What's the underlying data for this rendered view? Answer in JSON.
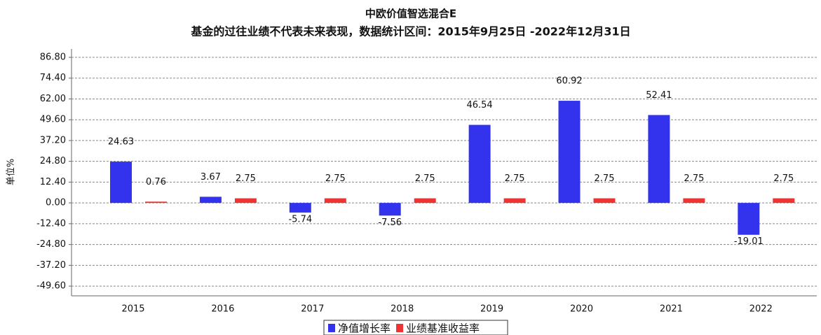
{
  "chart_data": {
    "type": "bar",
    "title": "中欧价值智选混合E",
    "subtitle": "基金的过往业绩不代表未来表现，数据统计区间：2015年9月25日 -2022年12月31日",
    "y_label": "单位%",
    "categories": [
      "2015",
      "2016",
      "2017",
      "2018",
      "2019",
      "2020",
      "2021",
      "2022"
    ],
    "series": [
      {
        "name": "净值增长率",
        "color": "#3333ee",
        "values": [
          24.63,
          3.67,
          -5.74,
          -7.56,
          46.54,
          60.92,
          52.41,
          -19.01
        ]
      },
      {
        "name": "业绩基准收益率",
        "color": "#ee3333",
        "values": [
          0.76,
          2.75,
          2.75,
          2.75,
          2.75,
          2.75,
          2.75,
          2.75
        ]
      }
    ],
    "ylim": [
      -55.4,
      91.8
    ],
    "yticks": [
      {
        "value": 86.8,
        "label": "86.80"
      },
      {
        "value": 74.4,
        "label": "74.40"
      },
      {
        "value": 62,
        "label": "62.00"
      },
      {
        "value": 49.6,
        "label": "49.60"
      },
      {
        "value": 37.2,
        "label": "37.20"
      },
      {
        "value": 24.8,
        "label": "24.80"
      },
      {
        "value": 12.4,
        "label": "12.40"
      },
      {
        "value": 0,
        "label": "0.00"
      },
      {
        "value": -12.4,
        "label": "-12.40"
      },
      {
        "value": -24.8,
        "label": "-24.80"
      },
      {
        "value": -37.2,
        "label": "-37.20"
      },
      {
        "value": -49.6,
        "label": "-49.60"
      }
    ],
    "grid": true,
    "legend": "bottom"
  }
}
